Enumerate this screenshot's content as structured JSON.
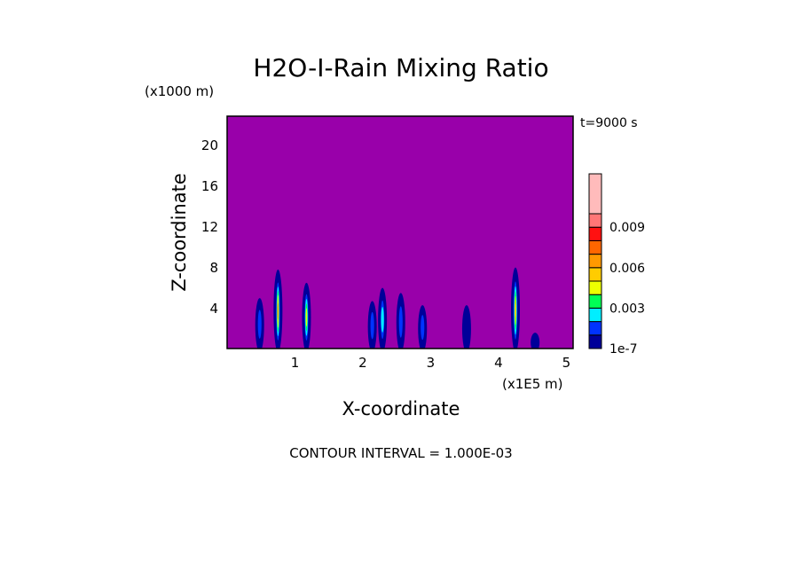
{
  "chart_data": {
    "type": "heatmap",
    "title": "H2O-I-Rain Mixing Ratio",
    "xlabel": "X-coordinate",
    "ylabel": "Z-coordinate",
    "x_unit": "(x1E5 m)",
    "y_unit": "(x1000 m)",
    "time_label": "t=9000 s",
    "footer": "CONTOUR INTERVAL = 1.000E-03",
    "xlim": [
      0,
      5.1
    ],
    "ylim": [
      0,
      22.8
    ],
    "x_ticks": [
      "1",
      "2",
      "3",
      "4",
      "5"
    ],
    "y_ticks": [
      "4",
      "8",
      "12",
      "16",
      "20"
    ],
    "background_color": "#9900aa",
    "colorbar": {
      "colors": [
        "#000099",
        "#0033ff",
        "#00eeff",
        "#00ff55",
        "#eeff00",
        "#ffcc00",
        "#ff9900",
        "#ff6600",
        "#ff1111",
        "#ff7777",
        "#ffbbbb"
      ],
      "tick_labels": [
        "1e-7",
        "0.003",
        "0.006",
        "0.009"
      ]
    },
    "cells": [
      {
        "x": 0.48,
        "ztop": 5.3,
        "level": 1
      },
      {
        "x": 0.75,
        "ztop": 8.1,
        "level": 6
      },
      {
        "x": 1.17,
        "ztop": 6.8,
        "level": 4
      },
      {
        "x": 2.14,
        "ztop": 5.0,
        "level": 1
      },
      {
        "x": 2.29,
        "ztop": 6.3,
        "level": 2
      },
      {
        "x": 2.56,
        "ztop": 5.8,
        "level": 1
      },
      {
        "x": 2.88,
        "ztop": 4.6,
        "level": 1
      },
      {
        "x": 3.53,
        "ztop": 4.6,
        "level": 0
      },
      {
        "x": 4.25,
        "ztop": 8.3,
        "level": 5
      },
      {
        "x": 4.54,
        "ztop": 1.9,
        "level": 0
      }
    ]
  }
}
